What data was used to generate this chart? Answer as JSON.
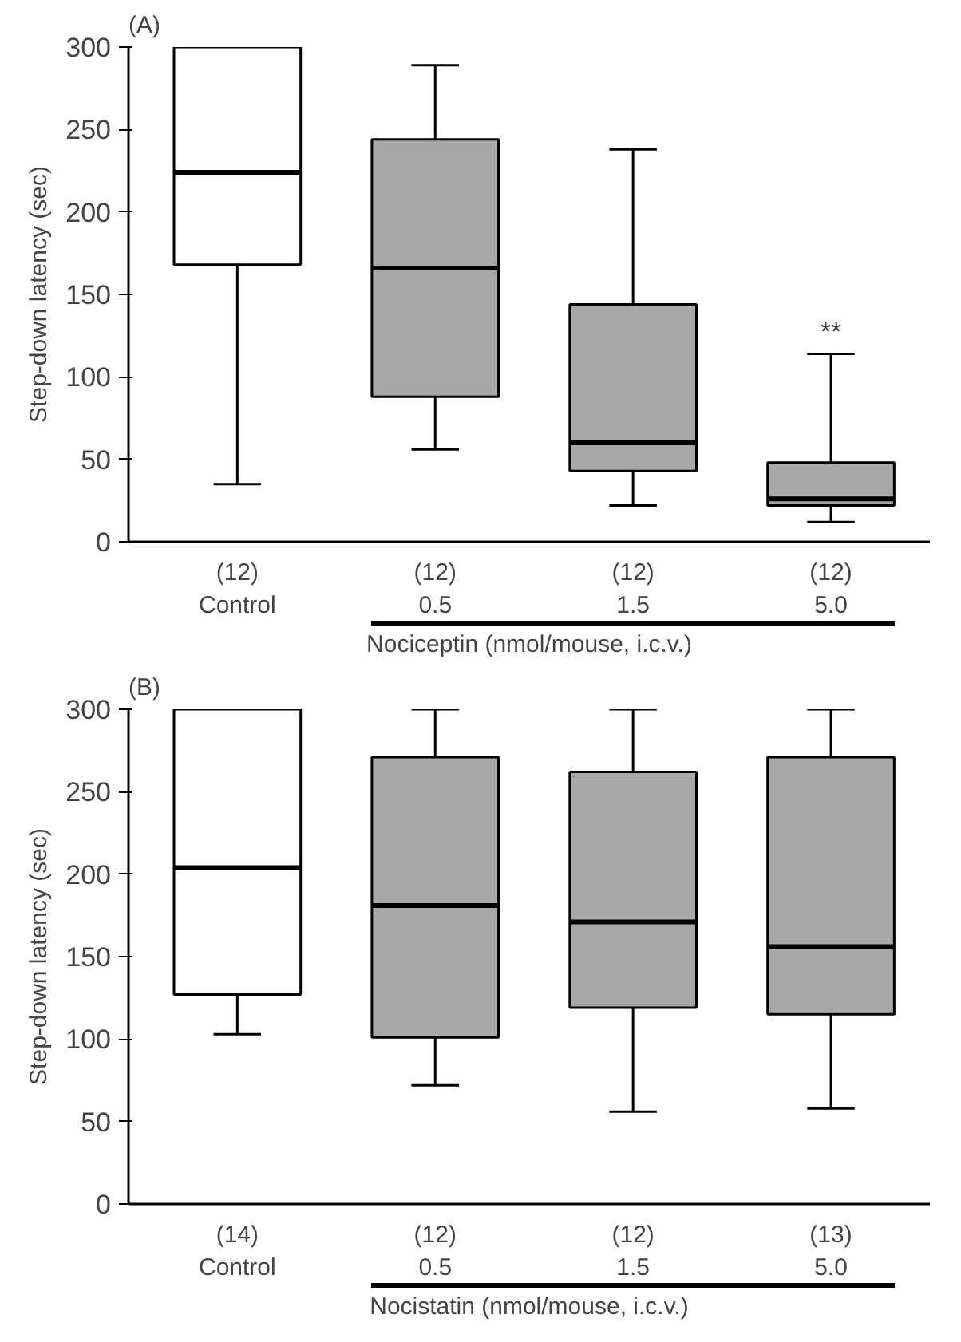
{
  "chart_data": [
    {
      "type": "box",
      "title": "(A)",
      "ylabel": "Step-down latency (sec)",
      "xlabel": "Nociceptin (nmol/mouse, i.c.v.)",
      "categories": [
        "(12)\nControl",
        "(12)\n0.5",
        "(12)\n1.5",
        "(12)\n5.0"
      ],
      "colors": [
        "#ffffff",
        "#a8a8a8",
        "#a8a8a8",
        "#a8a8a8"
      ],
      "boxes": [
        {
          "low": 35,
          "q1": 168,
          "median": 224,
          "q3": 300,
          "high": 300
        },
        {
          "low": 56,
          "q1": 88,
          "median": 166,
          "q3": 244,
          "high": 289
        },
        {
          "low": 22,
          "q1": 43,
          "median": 60,
          "q3": 144,
          "high": 238
        },
        {
          "low": 12,
          "q1": 22,
          "median": 26,
          "q3": 48,
          "high": 114
        }
      ],
      "ylim": [
        0,
        300
      ],
      "yticks": [
        0,
        50,
        100,
        150,
        200,
        250,
        300
      ],
      "grid": false,
      "annotations": [
        "**"
      ]
    },
    {
      "type": "box",
      "title": "(B)",
      "ylabel": "Step-down latency (sec)",
      "xlabel": "Nocistatin (nmol/mouse, i.c.v.)",
      "categories": [
        "(14)\nControl",
        "(12)\n0.5",
        "(12)\n1.5",
        "(13)\n5.0"
      ],
      "colors": [
        "#ffffff",
        "#a8a8a8",
        "#a8a8a8",
        "#a8a8a8"
      ],
      "boxes": [
        {
          "low": 103,
          "q1": 127,
          "median": 204,
          "q3": 300,
          "high": 300
        },
        {
          "low": 72,
          "q1": 101,
          "median": 181,
          "q3": 271,
          "high": 300
        },
        {
          "low": 56,
          "q1": 119,
          "median": 171,
          "q3": 262,
          "high": 300
        },
        {
          "low": 58,
          "q1": 115,
          "median": 156,
          "q3": 271,
          "high": 300
        }
      ],
      "ylim": [
        0,
        300
      ],
      "yticks": [
        0,
        50,
        100,
        150,
        200,
        250,
        300
      ],
      "grid": false
    }
  ]
}
